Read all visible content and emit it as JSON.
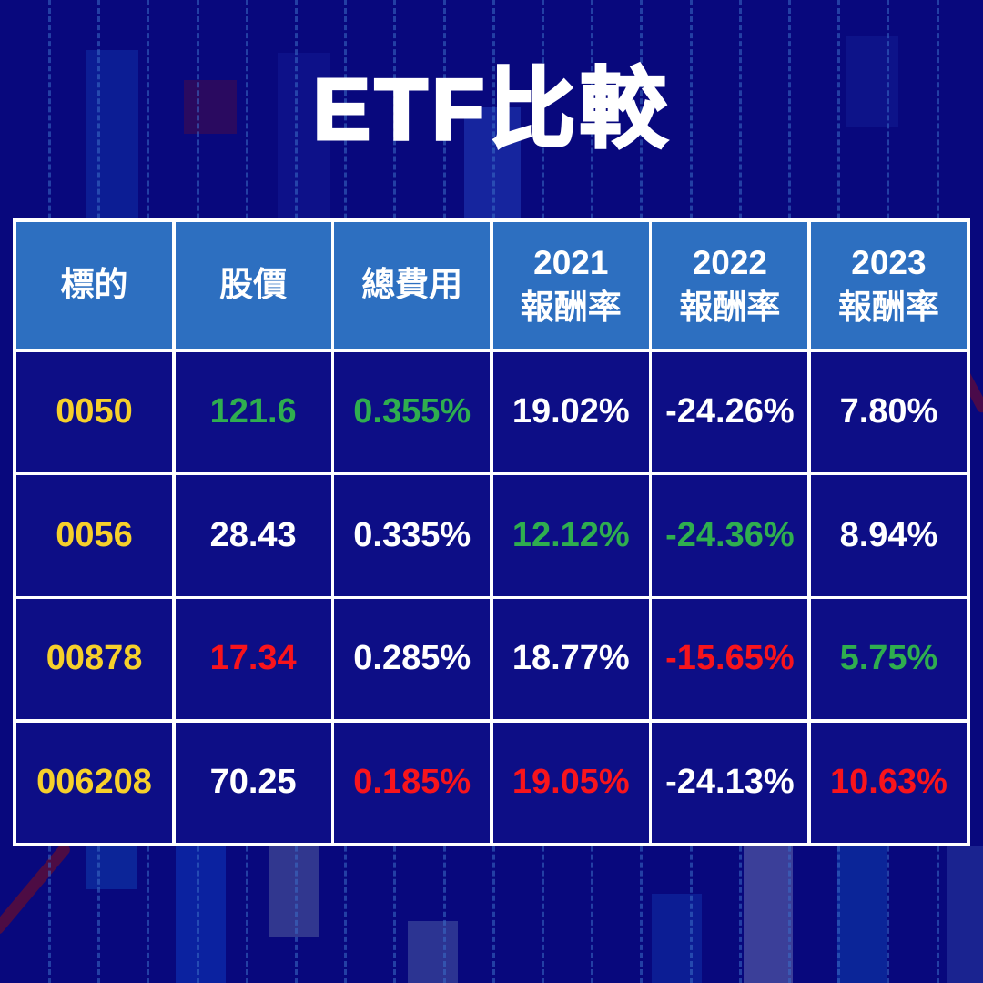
{
  "title": "ETF比較",
  "chart_data": {
    "type": "table",
    "title": "ETF比較",
    "columns": [
      "標的",
      "股價",
      "總費用",
      "2021 報酬率",
      "2022 報酬率",
      "2023 報酬率"
    ],
    "header_lines": [
      [
        "標的"
      ],
      [
        "股價"
      ],
      [
        "總費用"
      ],
      [
        "2021",
        "報酬率"
      ],
      [
        "2022",
        "報酬率"
      ],
      [
        "2023",
        "報酬率"
      ]
    ],
    "rows": [
      {
        "ticker": "0050",
        "values": [
          "121.6",
          "0.355%",
          "19.02%",
          "-24.26%",
          "7.80%"
        ],
        "value_colors": [
          "green",
          "green",
          "white",
          "white",
          "white"
        ]
      },
      {
        "ticker": "0056",
        "values": [
          "28.43",
          "0.335%",
          "12.12%",
          "-24.36%",
          "8.94%"
        ],
        "value_colors": [
          "white",
          "white",
          "green",
          "green",
          "white"
        ]
      },
      {
        "ticker": "00878",
        "values": [
          "17.34",
          "0.285%",
          "18.77%",
          "-15.65%",
          "5.75%"
        ],
        "value_colors": [
          "red",
          "white",
          "white",
          "red",
          "green"
        ]
      },
      {
        "ticker": "006208",
        "values": [
          "70.25",
          "0.185%",
          "19.05%",
          "-24.13%",
          "10.63%"
        ],
        "value_colors": [
          "white",
          "red",
          "red",
          "white",
          "red"
        ]
      }
    ]
  },
  "colors": {
    "page_bg": "#08087d",
    "cell_bg": "#0d0e86",
    "header_bg": "#2d6fc0",
    "ticker": "#f6d02b",
    "green": "#2fae4f",
    "red": "#f8141c",
    "white": "#ffffff"
  }
}
